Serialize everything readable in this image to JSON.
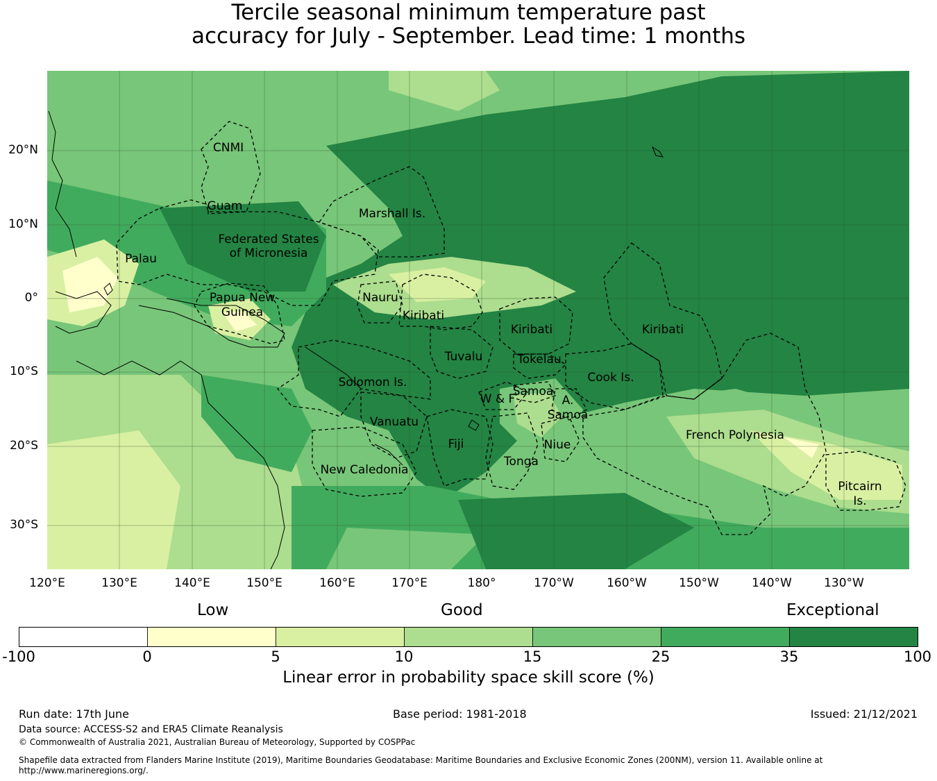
{
  "title": {
    "line1": "Tercile seasonal minimum temperature past",
    "line2": "accuracy for July - September. Lead time: 1 months"
  },
  "map": {
    "lon_labels": [
      "120°E",
      "130°E",
      "140°E",
      "150°E",
      "160°E",
      "170°E",
      "180°",
      "170°W",
      "160°W",
      "150°W",
      "140°W",
      "130°W"
    ],
    "lat_labels": [
      "20°N",
      "10°N",
      "0°",
      "10°S",
      "20°S",
      "30°S"
    ],
    "regions": [
      {
        "id": "cnmi",
        "label": "CNMI"
      },
      {
        "id": "guam",
        "label": "Guam"
      },
      {
        "id": "marshall",
        "label": "Marshall Is."
      },
      {
        "id": "fsm1",
        "label": "Federated States"
      },
      {
        "id": "fsm2",
        "label": "of Micronesia"
      },
      {
        "id": "palau",
        "label": "Palau"
      },
      {
        "id": "png1",
        "label": "Papua New"
      },
      {
        "id": "png2",
        "label": "Guinea"
      },
      {
        "id": "nauru",
        "label": "Nauru"
      },
      {
        "id": "kiribati_w",
        "label": "Kiribati"
      },
      {
        "id": "kiribati_c",
        "label": "Kiribati"
      },
      {
        "id": "kiribati_e",
        "label": "Kiribati"
      },
      {
        "id": "tuvalu",
        "label": "Tuvalu"
      },
      {
        "id": "tokelau",
        "label": "Tokelau"
      },
      {
        "id": "cook",
        "label": "Cook Is."
      },
      {
        "id": "solomon",
        "label": "Solomon Is."
      },
      {
        "id": "wf",
        "label": "W & F"
      },
      {
        "id": "samoa",
        "label": "Samoa"
      },
      {
        "id": "asamoa1",
        "label": "A."
      },
      {
        "id": "asamoa2",
        "label": "Samoa"
      },
      {
        "id": "vanuatu",
        "label": "Vanuatu"
      },
      {
        "id": "fiji",
        "label": "Fiji"
      },
      {
        "id": "niue",
        "label": "Niue"
      },
      {
        "id": "tonga",
        "label": "Tonga"
      },
      {
        "id": "frpoly",
        "label": "French Polynesia"
      },
      {
        "id": "newcal",
        "label": "New Caledonia"
      },
      {
        "id": "pitcairn1",
        "label": "Pitcairn"
      },
      {
        "id": "pitcairn2",
        "label": "Is."
      }
    ]
  },
  "colorbar": {
    "category_labels": [
      "Low",
      "Good",
      "Exceptional"
    ],
    "tick_labels": [
      "-100",
      "0",
      "5",
      "10",
      "15",
      "25",
      "35",
      "100"
    ],
    "colors": [
      "#ffffff",
      "#ffffcc",
      "#d9f0a3",
      "#addd8e",
      "#78c679",
      "#41ab5d",
      "#238443"
    ],
    "label": "Linear error in probability space skill score (%)"
  },
  "footer": {
    "run_date": "Run date: 17th June",
    "base_period": "Base period: 1981-2018",
    "issued": "Issued: 21/12/2021",
    "data_source": "Data source: ACCESS-S2 and ERA5 Climate Reanalysis",
    "copyright": "© Commonwealth of Australia 2021, Australian Bureau of Meteorology, Supported by COSPPac",
    "shapefile": "Shapefile data extracted from Flanders Marine Institute (2019), Maritime Boundaries Geodatabase: Maritime Boundaries and Exclusive Economic Zones (200NM), version 11. Available online at http://www.marineregions.org/."
  }
}
